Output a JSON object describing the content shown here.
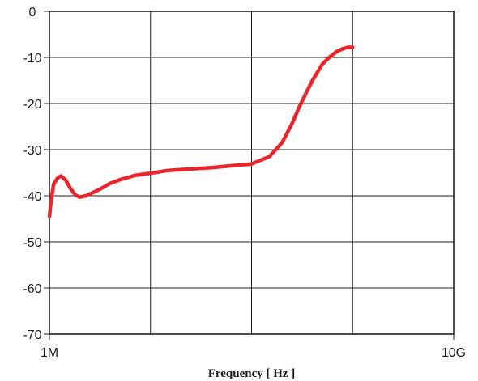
{
  "chart_data": {
    "type": "line",
    "title": "",
    "xlabel": "Frequency [ Hz ]",
    "ylabel": "",
    "x_scale": "log",
    "xlim": [
      1000000,
      10000000000
    ],
    "ylim": [
      -70,
      0
    ],
    "x_tick_labels": [
      {
        "value": 1000000,
        "label": "1M"
      },
      {
        "value": 10000000000,
        "label": "10G"
      }
    ],
    "x_grid": [
      10000000,
      100000000,
      1000000000
    ],
    "y_ticks": [
      0,
      -10,
      -20,
      -30,
      -40,
      -50,
      -60,
      -70
    ],
    "y_tick_labels": [
      "0",
      "-10",
      "-20",
      "-30",
      "-40",
      "-50",
      "-60",
      "-70"
    ],
    "grid": true,
    "line_color": "#e8262b",
    "series": [
      {
        "x": [
          1000000,
          1040000,
          1100000,
          1200000,
          1300000,
          1450000,
          1600000,
          1800000,
          2000000,
          2300000,
          2700000,
          3200000,
          4000000,
          5000000,
          7000000,
          10000000,
          15000000,
          25000000,
          40000000,
          70000000,
          100000000,
          150000000,
          200000000,
          250000000,
          300000000,
          350000000,
          400000000,
          500000000,
          600000000,
          700000000,
          800000000,
          900000000,
          1000000000
        ],
        "y": [
          -44.5,
          -41,
          -37.5,
          -36.2,
          -35.7,
          -36.6,
          -38.3,
          -39.8,
          -40.3,
          -40,
          -39.3,
          -38.5,
          -37.3,
          -36.5,
          -35.6,
          -35.1,
          -34.5,
          -34.2,
          -33.9,
          -33.4,
          -33.1,
          -31.5,
          -28.5,
          -24.5,
          -20.5,
          -17.5,
          -15,
          -11.5,
          -9.8,
          -8.7,
          -8.1,
          -7.8,
          -7.8
        ]
      }
    ]
  }
}
